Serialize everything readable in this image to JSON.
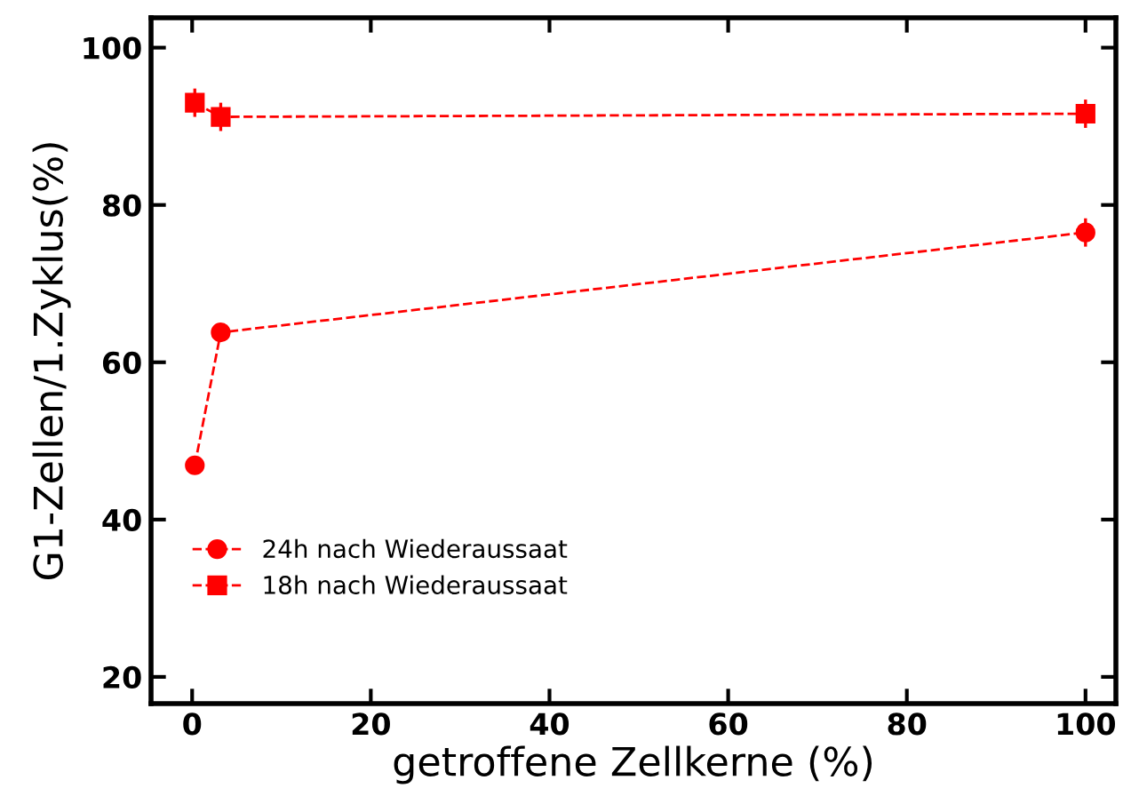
{
  "chart_data": {
    "type": "line",
    "xlabel": "getroffene Zellkerne (%)",
    "ylabel": "G1-Zellen/1.Zyklus(%)",
    "xlim": [
      -4.6,
      103.4
    ],
    "ylim": [
      16.6,
      103.8
    ],
    "xticks": [
      0,
      20,
      40,
      60,
      80,
      100
    ],
    "yticks": [
      20,
      40,
      60,
      80,
      100
    ],
    "grid": false,
    "legend": "bottom left",
    "line_style": "dashed",
    "series": [
      {
        "name": "24h nach Wiederaussaat",
        "color": "#ff0000",
        "marker": "circle",
        "x": [
          0.3,
          3.2,
          100
        ],
        "values": [
          46.9,
          63.8,
          76.5
        ],
        "errors": [
          null,
          null,
          1.8
        ]
      },
      {
        "name": "18h nach Wiederaussaat",
        "color": "#ff0000",
        "marker": "square",
        "x": [
          0.3,
          3.2,
          100
        ],
        "values": [
          93,
          91.2,
          91.6
        ],
        "errors": [
          1.8,
          1.8,
          1.8
        ]
      }
    ]
  }
}
